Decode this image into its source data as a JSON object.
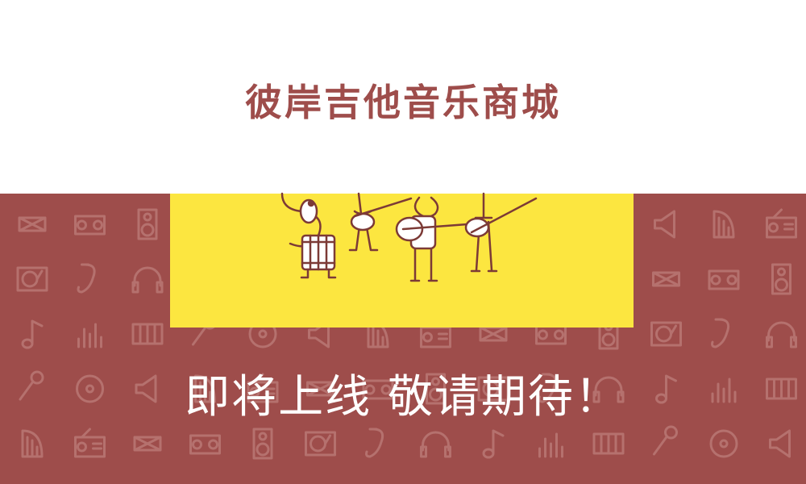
{
  "title": "彼岸吉他音乐商城",
  "tagline": "即将上线 敬请期待！",
  "colors": {
    "accent": "#9E4D4B",
    "yellow": "#FCE640",
    "header_bg": "#FFFFFF",
    "tagline": "#FFFFFF"
  },
  "pattern_icons": [
    "drum-icon",
    "boombox-icon",
    "speaker-icon",
    "turntable-icon",
    "saxophone-icon",
    "headphones-icon",
    "music-note-icon",
    "equalizer-icon",
    "piano-keys-icon",
    "microphone-icon",
    "vinyl-icon",
    "megaphone-icon",
    "harp-icon",
    "radio-icon"
  ],
  "illustration": "cartoon-band-musicians"
}
